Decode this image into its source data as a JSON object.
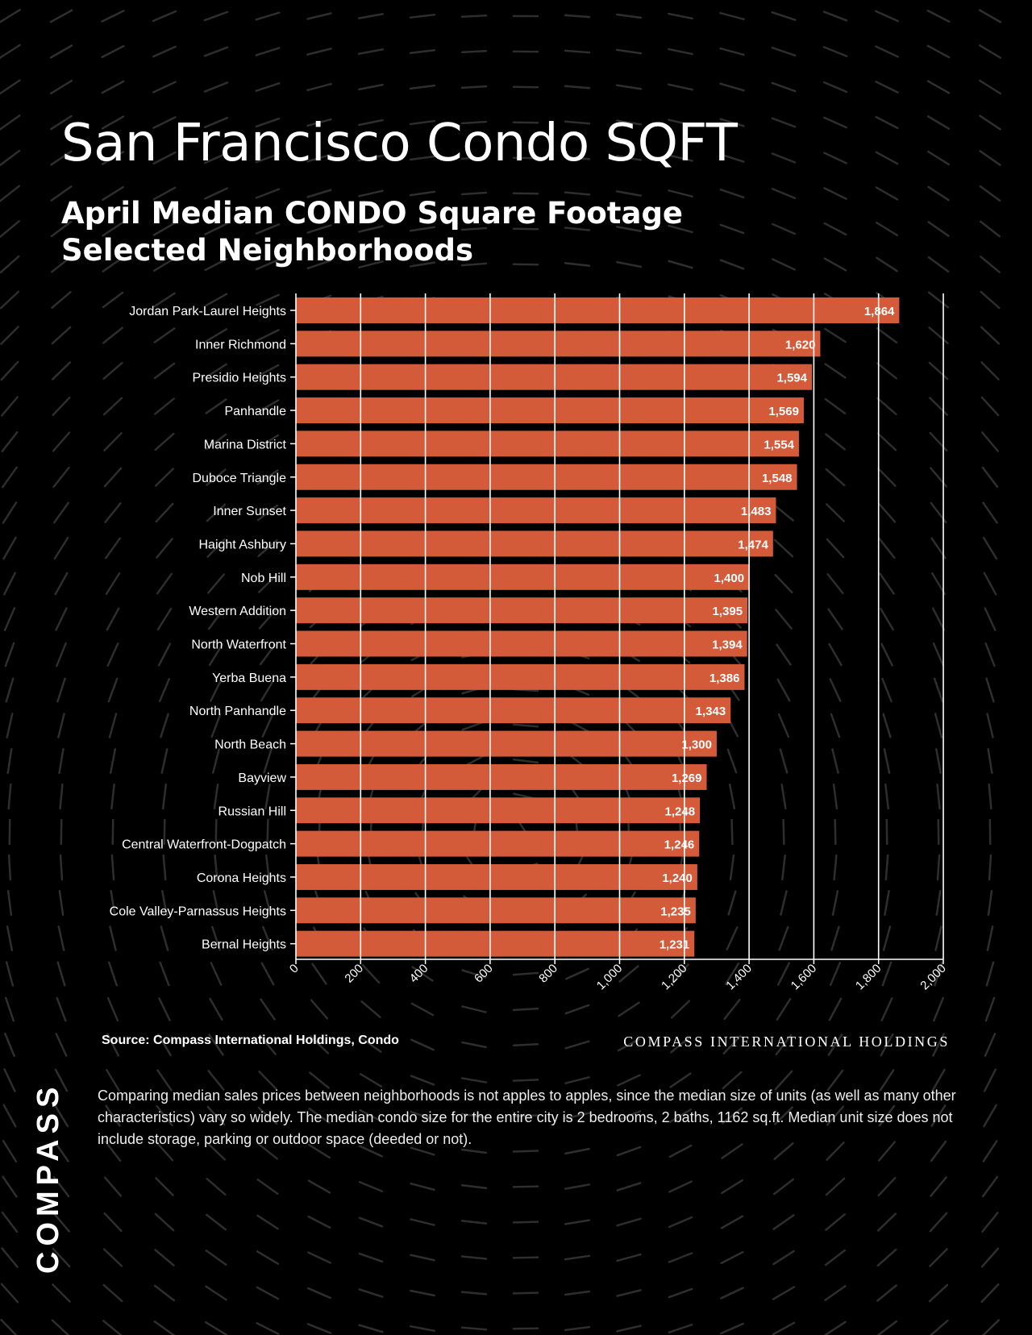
{
  "page": {
    "title": "San Francisco Condo SQFT",
    "subtitle_lines": [
      "April Median CONDO Square Footage",
      "Selected Neighborhoods"
    ],
    "source": "Source: Compass International Holdings, Condo",
    "brand_right": "COMPASS INTERNATIONAL HOLDINGS",
    "note": "Comparing median sales prices between neighborhoods is not apples to apples, since the median size of units (as well as many other characteristics) vary so widely. The median condo size for the entire city is 2 bedrooms, 2 baths, 1162 sq.ft. Median unit size does not include storage, parking or outdoor space (deeded or not).",
    "logo": "COMPASS"
  },
  "colors": {
    "background": "#000000",
    "bar": "#d45b3a",
    "text": "#ffffff",
    "pattern": "#2e2e2e"
  },
  "chart_data": {
    "type": "bar",
    "orientation": "horizontal",
    "categories": [
      "Jordan Park-Laurel Heights",
      "Inner Richmond",
      "Presidio Heights",
      "Panhandle",
      "Marina District",
      "Duboce Triangle",
      "Inner Sunset",
      "Haight Ashbury",
      "Nob Hill",
      "Western Addition",
      "North Waterfront",
      "Yerba Buena",
      "North Panhandle",
      "North Beach",
      "Bayview",
      "Russian Hill",
      "Central Waterfront-Dogpatch",
      "Corona Heights",
      "Cole Valley-Parnassus Heights",
      "Bernal Heights"
    ],
    "values": [
      1864,
      1620,
      1594,
      1569,
      1554,
      1548,
      1483,
      1474,
      1400,
      1395,
      1394,
      1386,
      1343,
      1300,
      1269,
      1248,
      1246,
      1240,
      1235,
      1231
    ],
    "value_labels": [
      "1,864",
      "1,620",
      "1,594",
      "1,569",
      "1,554",
      "1,548",
      "1,483",
      "1,474",
      "1,400",
      "1,395",
      "1,394",
      "1,386",
      "1,343",
      "1,300",
      "1,269",
      "1,248",
      "1,246",
      "1,240",
      "1,235",
      "1,231"
    ],
    "xlim": [
      0,
      2000
    ],
    "xticks": [
      0,
      200,
      400,
      600,
      800,
      1000,
      1200,
      1400,
      1600,
      1800,
      2000
    ],
    "xtick_labels": [
      "0",
      "200",
      "400",
      "600",
      "800",
      "1,000",
      "1,200",
      "1,400",
      "1,600",
      "1,800",
      "2,000"
    ],
    "grid": true,
    "legend": "none"
  }
}
